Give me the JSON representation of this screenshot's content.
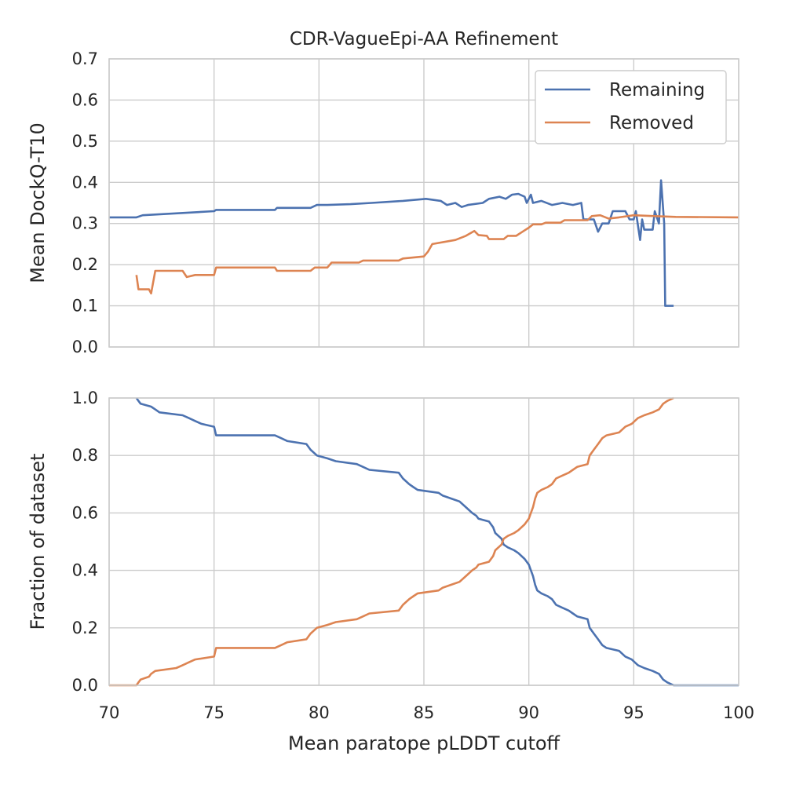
{
  "chart_data": [
    {
      "type": "line",
      "title": "CDR-VagueEpi-AA Refinement",
      "xlabel": "",
      "ylabel": "Mean DockQ-T10",
      "xlim": [
        70,
        100
      ],
      "ylim": [
        0,
        0.7
      ],
      "xticks": [
        "70",
        "75",
        "80",
        "85",
        "90",
        "95",
        "100"
      ],
      "xticks_visible": false,
      "yticks": [
        "0.0",
        "0.1",
        "0.2",
        "0.3",
        "0.4",
        "0.5",
        "0.6",
        "0.7"
      ],
      "grid": true,
      "legend": {
        "position": "top-right",
        "entries": [
          "Remaining",
          "Removed"
        ]
      },
      "series": [
        {
          "name": "Remaining",
          "color": "#4c72b0",
          "points": [
            [
              70.0,
              0.315
            ],
            [
              71.3,
              0.315
            ],
            [
              71.6,
              0.32
            ],
            [
              75.0,
              0.33
            ],
            [
              75.1,
              0.333
            ],
            [
              77.9,
              0.333
            ],
            [
              78.0,
              0.338
            ],
            [
              79.6,
              0.338
            ],
            [
              79.9,
              0.345
            ],
            [
              80.4,
              0.345
            ],
            [
              81.5,
              0.347
            ],
            [
              82.5,
              0.35
            ],
            [
              84.0,
              0.355
            ],
            [
              85.1,
              0.36
            ],
            [
              85.8,
              0.355
            ],
            [
              86.1,
              0.345
            ],
            [
              86.5,
              0.35
            ],
            [
              86.8,
              0.34
            ],
            [
              87.1,
              0.345
            ],
            [
              87.8,
              0.35
            ],
            [
              88.1,
              0.36
            ],
            [
              88.6,
              0.365
            ],
            [
              88.9,
              0.36
            ],
            [
              89.2,
              0.37
            ],
            [
              89.5,
              0.372
            ],
            [
              89.8,
              0.365
            ],
            [
              89.9,
              0.35
            ],
            [
              90.1,
              0.37
            ],
            [
              90.2,
              0.35
            ],
            [
              90.6,
              0.355
            ],
            [
              91.1,
              0.345
            ],
            [
              91.6,
              0.35
            ],
            [
              92.1,
              0.345
            ],
            [
              92.5,
              0.35
            ],
            [
              92.6,
              0.31
            ],
            [
              93.1,
              0.31
            ],
            [
              93.3,
              0.28
            ],
            [
              93.5,
              0.3
            ],
            [
              93.8,
              0.3
            ],
            [
              94.0,
              0.33
            ],
            [
              94.6,
              0.33
            ],
            [
              94.8,
              0.31
            ],
            [
              95.0,
              0.31
            ],
            [
              95.1,
              0.33
            ],
            [
              95.3,
              0.26
            ],
            [
              95.4,
              0.31
            ],
            [
              95.5,
              0.285
            ],
            [
              95.9,
              0.285
            ],
            [
              96.0,
              0.33
            ],
            [
              96.2,
              0.3
            ],
            [
              96.3,
              0.405
            ],
            [
              96.45,
              0.3
            ],
            [
              96.5,
              0.1
            ],
            [
              96.9,
              0.1
            ]
          ]
        },
        {
          "name": "Removed",
          "color": "#dd8452",
          "points": [
            [
              71.3,
              0.175
            ],
            [
              71.4,
              0.14
            ],
            [
              71.9,
              0.14
            ],
            [
              72.0,
              0.13
            ],
            [
              72.2,
              0.185
            ],
            [
              73.5,
              0.185
            ],
            [
              73.7,
              0.17
            ],
            [
              74.1,
              0.175
            ],
            [
              75.0,
              0.175
            ],
            [
              75.1,
              0.193
            ],
            [
              77.9,
              0.193
            ],
            [
              78.0,
              0.185
            ],
            [
              79.6,
              0.185
            ],
            [
              79.8,
              0.193
            ],
            [
              80.4,
              0.193
            ],
            [
              80.6,
              0.205
            ],
            [
              81.9,
              0.205
            ],
            [
              82.1,
              0.21
            ],
            [
              83.8,
              0.21
            ],
            [
              84.0,
              0.215
            ],
            [
              85.0,
              0.22
            ],
            [
              85.2,
              0.232
            ],
            [
              85.4,
              0.25
            ],
            [
              86.5,
              0.26
            ],
            [
              87.0,
              0.27
            ],
            [
              87.4,
              0.282
            ],
            [
              87.6,
              0.272
            ],
            [
              88.0,
              0.27
            ],
            [
              88.1,
              0.262
            ],
            [
              88.8,
              0.262
            ],
            [
              89.0,
              0.27
            ],
            [
              89.4,
              0.27
            ],
            [
              89.7,
              0.28
            ],
            [
              90.0,
              0.29
            ],
            [
              90.2,
              0.298
            ],
            [
              90.6,
              0.298
            ],
            [
              90.8,
              0.302
            ],
            [
              91.5,
              0.302
            ],
            [
              91.7,
              0.308
            ],
            [
              92.8,
              0.308
            ],
            [
              93.0,
              0.318
            ],
            [
              93.4,
              0.32
            ],
            [
              93.8,
              0.312
            ],
            [
              94.3,
              0.315
            ],
            [
              95.0,
              0.32
            ],
            [
              96.0,
              0.318
            ],
            [
              97.0,
              0.316
            ],
            [
              100.0,
              0.315
            ]
          ]
        }
      ]
    },
    {
      "type": "line",
      "title": "",
      "xlabel": "Mean paratope pLDDT cutoff",
      "ylabel": "Fraction of dataset",
      "xlim": [
        70,
        100
      ],
      "ylim": [
        0,
        1.0
      ],
      "xticks": [
        "70",
        "75",
        "80",
        "85",
        "90",
        "95",
        "100"
      ],
      "yticks": [
        "0.0",
        "0.2",
        "0.4",
        "0.6",
        "0.8",
        "1.0"
      ],
      "grid": true,
      "series": [
        {
          "name": "Remaining",
          "color": "#4c72b0",
          "points": [
            [
              71.3,
              1.0
            ],
            [
              71.4,
              0.99
            ],
            [
              71.5,
              0.98
            ],
            [
              72.0,
              0.97
            ],
            [
              72.2,
              0.96
            ],
            [
              72.4,
              0.95
            ],
            [
              73.5,
              0.94
            ],
            [
              73.8,
              0.93
            ],
            [
              74.1,
              0.92
            ],
            [
              74.4,
              0.91
            ],
            [
              75.0,
              0.9
            ],
            [
              75.1,
              0.87
            ],
            [
              77.9,
              0.87
            ],
            [
              78.2,
              0.86
            ],
            [
              78.5,
              0.85
            ],
            [
              79.4,
              0.84
            ],
            [
              79.6,
              0.82
            ],
            [
              79.9,
              0.8
            ],
            [
              80.4,
              0.79
            ],
            [
              80.8,
              0.78
            ],
            [
              81.8,
              0.77
            ],
            [
              82.1,
              0.76
            ],
            [
              82.4,
              0.75
            ],
            [
              83.8,
              0.74
            ],
            [
              84.0,
              0.72
            ],
            [
              84.3,
              0.7
            ],
            [
              84.5,
              0.69
            ],
            [
              84.7,
              0.68
            ],
            [
              85.7,
              0.67
            ],
            [
              85.9,
              0.66
            ],
            [
              86.3,
              0.65
            ],
            [
              86.7,
              0.64
            ],
            [
              87.0,
              0.62
            ],
            [
              87.3,
              0.6
            ],
            [
              87.5,
              0.59
            ],
            [
              87.6,
              0.58
            ],
            [
              88.1,
              0.57
            ],
            [
              88.3,
              0.55
            ],
            [
              88.4,
              0.53
            ],
            [
              88.7,
              0.51
            ],
            [
              88.8,
              0.49
            ],
            [
              89.0,
              0.48
            ],
            [
              89.3,
              0.47
            ],
            [
              89.5,
              0.46
            ],
            [
              89.8,
              0.44
            ],
            [
              90.0,
              0.42
            ],
            [
              90.1,
              0.4
            ],
            [
              90.2,
              0.38
            ],
            [
              90.3,
              0.35
            ],
            [
              90.4,
              0.33
            ],
            [
              90.6,
              0.32
            ],
            [
              90.9,
              0.31
            ],
            [
              91.1,
              0.3
            ],
            [
              91.3,
              0.28
            ],
            [
              91.6,
              0.27
            ],
            [
              91.9,
              0.26
            ],
            [
              92.1,
              0.25
            ],
            [
              92.3,
              0.24
            ],
            [
              92.8,
              0.23
            ],
            [
              92.9,
              0.2
            ],
            [
              93.1,
              0.18
            ],
            [
              93.3,
              0.16
            ],
            [
              93.5,
              0.14
            ],
            [
              93.7,
              0.13
            ],
            [
              94.3,
              0.12
            ],
            [
              94.6,
              0.1
            ],
            [
              94.9,
              0.09
            ],
            [
              95.2,
              0.07
            ],
            [
              95.5,
              0.06
            ],
            [
              95.9,
              0.05
            ],
            [
              96.2,
              0.04
            ],
            [
              96.4,
              0.02
            ],
            [
              96.6,
              0.01
            ],
            [
              96.9,
              0.0
            ],
            [
              100.0,
              0.0
            ]
          ]
        },
        {
          "name": "Removed",
          "color": "#dd8452",
          "points": [
            [
              70.0,
              0.0
            ],
            [
              71.3,
              0.0
            ],
            [
              71.4,
              0.01
            ],
            [
              71.5,
              0.02
            ],
            [
              71.9,
              0.03
            ],
            [
              72.0,
              0.04
            ],
            [
              72.2,
              0.05
            ],
            [
              73.2,
              0.06
            ],
            [
              73.5,
              0.07
            ],
            [
              73.8,
              0.08
            ],
            [
              74.1,
              0.09
            ],
            [
              75.0,
              0.1
            ],
            [
              75.1,
              0.13
            ],
            [
              77.9,
              0.13
            ],
            [
              78.2,
              0.14
            ],
            [
              78.5,
              0.15
            ],
            [
              79.4,
              0.16
            ],
            [
              79.6,
              0.18
            ],
            [
              79.9,
              0.2
            ],
            [
              80.4,
              0.21
            ],
            [
              80.8,
              0.22
            ],
            [
              81.8,
              0.23
            ],
            [
              82.1,
              0.24
            ],
            [
              82.4,
              0.25
            ],
            [
              83.8,
              0.26
            ],
            [
              84.0,
              0.28
            ],
            [
              84.3,
              0.3
            ],
            [
              84.5,
              0.31
            ],
            [
              84.7,
              0.32
            ],
            [
              85.7,
              0.33
            ],
            [
              85.9,
              0.34
            ],
            [
              86.3,
              0.35
            ],
            [
              86.7,
              0.36
            ],
            [
              87.0,
              0.38
            ],
            [
              87.3,
              0.4
            ],
            [
              87.5,
              0.41
            ],
            [
              87.6,
              0.42
            ],
            [
              88.1,
              0.43
            ],
            [
              88.3,
              0.45
            ],
            [
              88.4,
              0.47
            ],
            [
              88.7,
              0.49
            ],
            [
              88.8,
              0.51
            ],
            [
              89.0,
              0.52
            ],
            [
              89.3,
              0.53
            ],
            [
              89.5,
              0.54
            ],
            [
              89.8,
              0.56
            ],
            [
              90.0,
              0.58
            ],
            [
              90.1,
              0.6
            ],
            [
              90.2,
              0.62
            ],
            [
              90.3,
              0.65
            ],
            [
              90.4,
              0.67
            ],
            [
              90.6,
              0.68
            ],
            [
              90.9,
              0.69
            ],
            [
              91.1,
              0.7
            ],
            [
              91.3,
              0.72
            ],
            [
              91.6,
              0.73
            ],
            [
              91.9,
              0.74
            ],
            [
              92.1,
              0.75
            ],
            [
              92.3,
              0.76
            ],
            [
              92.8,
              0.77
            ],
            [
              92.9,
              0.8
            ],
            [
              93.1,
              0.82
            ],
            [
              93.3,
              0.84
            ],
            [
              93.5,
              0.86
            ],
            [
              93.7,
              0.87
            ],
            [
              94.3,
              0.88
            ],
            [
              94.6,
              0.9
            ],
            [
              94.9,
              0.91
            ],
            [
              95.2,
              0.93
            ],
            [
              95.5,
              0.94
            ],
            [
              95.9,
              0.95
            ],
            [
              96.2,
              0.96
            ],
            [
              96.4,
              0.98
            ],
            [
              96.6,
              0.99
            ],
            [
              96.9,
              1.0
            ]
          ]
        }
      ]
    }
  ]
}
